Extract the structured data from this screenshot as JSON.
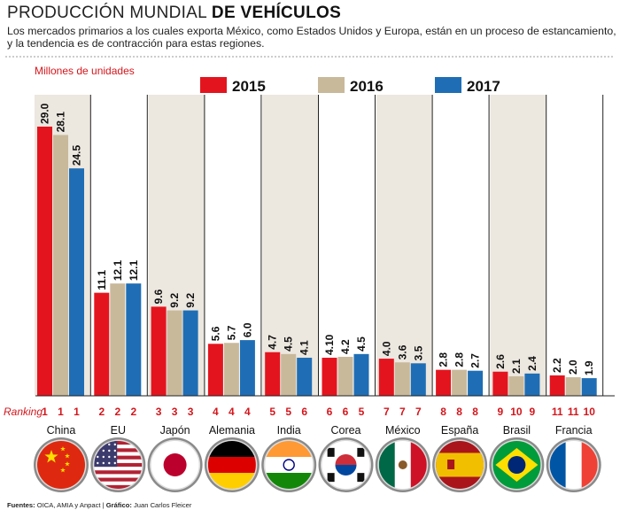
{
  "header": {
    "title_light": "PRODUCCIÓN MUNDIAL",
    "title_bold": "DE VEHÍCULOS",
    "subtitle": "Los mercados primarios a los cuales exporta México, como Estados Unidos y Europa, están en un proceso de estancamiento, y la tendencia es de contracción para estas regiones."
  },
  "ranking_label": "Ranking",
  "footer": {
    "sources_label": "Fuentes:",
    "sources": "OICA, AMIA y Anpact",
    "graphic_label": "Gráfico:",
    "graphic": "Juan Carlos Fleicer"
  },
  "colors": {
    "2015": "#e4141e",
    "2016": "#c9b99b",
    "2017": "#1f6eb5",
    "band": "#ece7df",
    "accent": "#d4161c"
  },
  "chart_data": {
    "type": "bar",
    "title": "PRODUCCIÓN MUNDIAL DE VEHÍCULOS",
    "ylabel": "Millones de unidades",
    "ylim": [
      0,
      30
    ],
    "legend_position": "top-center",
    "categories": [
      "China",
      "EU",
      "Japón",
      "Alemania",
      "India",
      "Corea",
      "México",
      "España",
      "Brasil",
      "Francia"
    ],
    "series": [
      {
        "name": "2015",
        "values": [
          29.0,
          11.1,
          9.6,
          5.6,
          4.7,
          4.1,
          4.0,
          2.8,
          2.6,
          2.2
        ],
        "labels": [
          "29.0",
          "11.1",
          "9.6",
          "5.6",
          "4.7",
          "4.10",
          "4.0",
          "2.8",
          "2.6",
          "2.2"
        ]
      },
      {
        "name": "2016",
        "values": [
          28.1,
          12.1,
          9.2,
          5.7,
          4.5,
          4.2,
          3.6,
          2.8,
          2.1,
          2.0
        ],
        "labels": [
          "28.1",
          "12.1",
          "9.2",
          "5.7",
          "4.5",
          "4.2",
          "3.6",
          "2.8",
          "2.1",
          "2.0"
        ]
      },
      {
        "name": "2017",
        "values": [
          24.5,
          12.1,
          9.2,
          6.0,
          4.1,
          4.5,
          3.5,
          2.7,
          2.4,
          1.9
        ],
        "labels": [
          "24.5",
          "12.1",
          "9.2",
          "6.0",
          "4.1",
          "4.5",
          "3.5",
          "2.7",
          "2.4",
          "1.9"
        ]
      }
    ],
    "ranking": [
      [
        "1",
        "1",
        "1"
      ],
      [
        "2",
        "2",
        "2"
      ],
      [
        "3",
        "3",
        "3"
      ],
      [
        "4",
        "4",
        "4"
      ],
      [
        "5",
        "5",
        "6"
      ],
      [
        "6",
        "6",
        "5"
      ],
      [
        "7",
        "7",
        "7"
      ],
      [
        "8",
        "8",
        "8"
      ],
      [
        "9",
        "10",
        "9"
      ],
      [
        "11",
        "11",
        "10"
      ]
    ],
    "flags": [
      "china-flag-icon",
      "usa-flag-icon",
      "japan-flag-icon",
      "germany-flag-icon",
      "india-flag-icon",
      "south-korea-flag-icon",
      "mexico-flag-icon",
      "spain-flag-icon",
      "brazil-flag-icon",
      "france-flag-icon"
    ]
  }
}
